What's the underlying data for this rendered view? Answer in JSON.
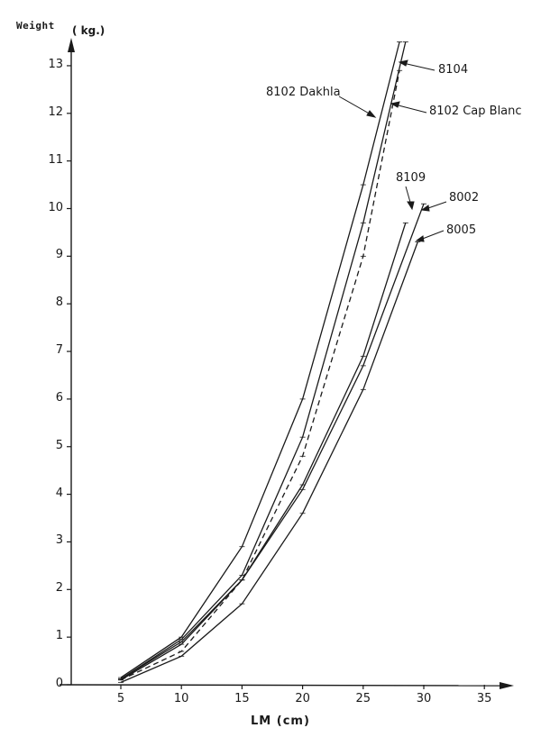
{
  "chart_data": {
    "type": "line",
    "title": "",
    "xlabel": "LM (cm)",
    "ylabel": "Weight (kg)",
    "ylabel_parts": [
      "Weight",
      "(kg)"
    ],
    "xlim": [
      0,
      37
    ],
    "ylim": [
      0,
      13.5
    ],
    "x_ticks": [
      5,
      10,
      15,
      20,
      25,
      30,
      35
    ],
    "y_ticks": [
      0,
      1,
      2,
      3,
      4,
      5,
      6,
      7,
      8,
      9,
      10,
      11,
      12,
      13
    ],
    "grid": false,
    "legend_position": "inline annotations with arrows",
    "series": [
      {
        "name": "8102 Dakhla",
        "style": "solid",
        "x": [
          5,
          10,
          15,
          20,
          25,
          28
        ],
        "values": [
          0.15,
          1.0,
          2.9,
          6.0,
          10.5,
          13.5
        ]
      },
      {
        "name": "8104",
        "style": "solid",
        "x": [
          5,
          10,
          15,
          20,
          25,
          28.5
        ],
        "values": [
          0.12,
          0.95,
          2.3,
          5.2,
          9.7,
          13.5
        ]
      },
      {
        "name": "8102 Cap Blanc",
        "style": "dashed",
        "x": [
          5,
          10,
          15,
          20,
          25,
          28
        ],
        "values": [
          0.1,
          0.7,
          2.2,
          4.8,
          9.0,
          12.9
        ]
      },
      {
        "name": "8109",
        "style": "solid",
        "x": [
          5,
          10,
          15,
          20,
          25,
          28.5
        ],
        "values": [
          0.12,
          0.9,
          2.2,
          4.2,
          6.9,
          9.7
        ]
      },
      {
        "name": "8002",
        "style": "solid",
        "x": [
          5,
          10,
          15,
          20,
          25,
          30
        ],
        "values": [
          0.1,
          0.85,
          2.2,
          4.1,
          6.7,
          10.1
        ]
      },
      {
        "name": "8005",
        "style": "solid",
        "x": [
          5,
          10,
          15,
          20,
          25,
          29.5
        ],
        "values": [
          0.05,
          0.6,
          1.7,
          3.6,
          6.2,
          9.3
        ]
      }
    ]
  },
  "labels": {
    "weight": "Weight",
    "unit": "( kg.)",
    "x_axis": "LM (cm)",
    "legend": {
      "dakhla": "8102 Dakhla",
      "s8104": "8104",
      "capblanc": "8102 Cap Blanc",
      "s8109": "8109",
      "s8002": "8002",
      "s8005": "8005"
    }
  },
  "colors": {
    "ink": "#1a1a1a",
    "background": "#ffffff"
  }
}
